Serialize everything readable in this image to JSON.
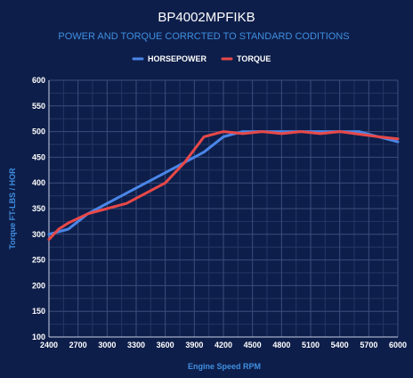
{
  "chart_data": {
    "type": "line",
    "title": "BP4002MPFIKB",
    "subtitle": "POWER AND TORQUE CORRCTED TO STANDARD CODITIONS",
    "xlabel": "Engine Speed RPM",
    "ylabel": "Torque FT-LBS / HOR",
    "xlim": [
      2400,
      6000
    ],
    "ylim": [
      100,
      600
    ],
    "xticks": [
      2400,
      2700,
      3000,
      3300,
      3600,
      3900,
      4200,
      4500,
      4800,
      5100,
      5400,
      5700,
      6000
    ],
    "yticks": [
      100,
      150,
      200,
      250,
      300,
      350,
      400,
      450,
      500,
      550,
      600
    ],
    "grid": true,
    "legend_position": "top-center",
    "series": [
      {
        "name": "HORSEPOWER",
        "color": "#4a86e8",
        "x": [
          2400,
          2600,
          2800,
          3000,
          3200,
          3400,
          3600,
          3800,
          4000,
          4200,
          4400,
          4600,
          4800,
          5000,
          5200,
          5400,
          5600,
          5800,
          6000
        ],
        "y": [
          300,
          310,
          340,
          360,
          380,
          400,
          420,
          440,
          460,
          490,
          500,
          500,
          500,
          500,
          500,
          500,
          500,
          490,
          480
        ]
      },
      {
        "name": "TORQUE",
        "color": "#e84848",
        "x": [
          2400,
          2500,
          2600,
          2800,
          3000,
          3200,
          3400,
          3600,
          3800,
          4000,
          4200,
          4400,
          4600,
          4800,
          5000,
          5200,
          5400,
          5600,
          5800,
          6000
        ],
        "y": [
          290,
          310,
          322,
          340,
          350,
          360,
          380,
          400,
          440,
          490,
          500,
          496,
          500,
          496,
          500,
          496,
          500,
          495,
          490,
          486
        ]
      }
    ]
  }
}
